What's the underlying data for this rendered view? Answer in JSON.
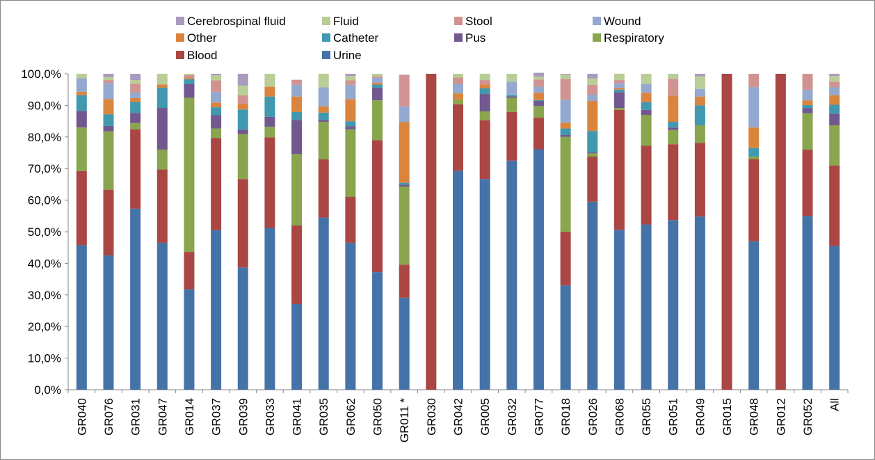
{
  "chart_data": {
    "type": "bar",
    "stacked": true,
    "percent_stacked": true,
    "categories": [
      "GR040",
      "GR076",
      "GR031",
      "GR047",
      "GR014",
      "GR037",
      "GR039",
      "GR033",
      "GR041",
      "GR035",
      "GR062",
      "GR050",
      "GR011 *",
      "GR030",
      "GR042",
      "GR005",
      "GR032",
      "GR077",
      "GR018",
      "GR026",
      "GR068",
      "GR055",
      "GR051",
      "GR049",
      "GR015",
      "GR048",
      "GR012",
      "GR052",
      "All"
    ],
    "ylim": [
      0,
      100
    ],
    "yticks": [
      "0,0%",
      "10,0%",
      "20,0%",
      "30,0%",
      "40,0%",
      "50,0%",
      "60,0%",
      "70,0%",
      "80,0%",
      "90,0%",
      "100,0%"
    ],
    "grid": false,
    "legend_position": "top",
    "legend_order": [
      "Cerebrospinal fluid",
      "Fluid",
      "Stool",
      "Wound",
      "Other",
      "Catheter",
      "Pus",
      "Respiratory",
      "Blood",
      "Urine"
    ],
    "series": [
      {
        "name": "Urine",
        "color": "#4573A7",
        "values": [
          45.8,
          42.5,
          57.3,
          46.5,
          31.8,
          50.5,
          38.7,
          51.2,
          27.1,
          54.5,
          46.5,
          37.2,
          29.1,
          0,
          69.3,
          66.7,
          72.5,
          76.1,
          33.0,
          59.5,
          50.6,
          52.3,
          53.7,
          54.8,
          0,
          47.0,
          0,
          55.0,
          45.5
        ]
      },
      {
        "name": "Blood",
        "color": "#AA4643",
        "values": [
          23.4,
          20.8,
          25.1,
          23.2,
          11.8,
          29.2,
          28.0,
          28.7,
          24.9,
          18.4,
          14.6,
          41.8,
          10.5,
          100,
          21.0,
          18.6,
          15.4,
          10.0,
          17.0,
          14.3,
          38.0,
          24.9,
          24.0,
          23.3,
          100,
          26.0,
          100,
          21.0,
          25.5
        ]
      },
      {
        "name": "Respiratory",
        "color": "#89A54E",
        "values": [
          13.8,
          18.5,
          2.0,
          6.3,
          48.8,
          3.0,
          14.2,
          3.3,
          22.6,
          11.9,
          21.3,
          12.6,
          24.7,
          0,
          1.5,
          2.8,
          4.5,
          3.7,
          30.0,
          1.0,
          0.6,
          9.8,
          4.5,
          5.6,
          0,
          0.8,
          0,
          11.5,
          12.7
        ]
      },
      {
        "name": "Pus",
        "color": "#71588F",
        "values": [
          5.2,
          1.7,
          3.2,
          13.2,
          4.3,
          4.2,
          1.4,
          3.2,
          10.8,
          0.6,
          1.0,
          4.0,
          0.6,
          0,
          0,
          5.5,
          0.5,
          1.6,
          0.7,
          0.3,
          5.0,
          1.6,
          0.8,
          0,
          0,
          0,
          0,
          1.6,
          3.7
        ]
      },
      {
        "name": "Catheter",
        "color": "#4198AF",
        "values": [
          5.0,
          3.7,
          3.5,
          6.4,
          1.6,
          2.5,
          6.4,
          6.4,
          2.5,
          2.3,
          1.6,
          1.0,
          0.6,
          0,
          0,
          1.8,
          0.3,
          0.3,
          2.0,
          6.8,
          0.8,
          2.4,
          1.8,
          6.3,
          0,
          2.7,
          0,
          1.0,
          2.8
        ]
      },
      {
        "name": "Other",
        "color": "#DB843D",
        "values": [
          1.1,
          4.8,
          1.2,
          1.0,
          0.5,
          1.5,
          1.8,
          3.1,
          4.9,
          2.0,
          7.0,
          0.6,
          19.2,
          0,
          2.0,
          1.2,
          0,
          2.3,
          1.8,
          9.5,
          0.5,
          3.0,
          8.3,
          2.8,
          0,
          6.5,
          0,
          1.5,
          3.0
        ]
      },
      {
        "name": "Wound",
        "color": "#93A9CF",
        "values": [
          4.3,
          5.0,
          1.8,
          0,
          0,
          3.4,
          0,
          0,
          3.7,
          6.0,
          4.5,
          1.5,
          5.0,
          0,
          3.0,
          0,
          4.3,
          1.9,
          7.3,
          2.0,
          1.5,
          2.7,
          0,
          2.4,
          0,
          12.8,
          0,
          3.3,
          2.5
        ]
      },
      {
        "name": "Stool",
        "color": "#D19392",
        "values": [
          0,
          1.0,
          2.7,
          0,
          0.8,
          3.6,
          2.7,
          0,
          1.6,
          0,
          1.4,
          0.5,
          10.0,
          0,
          2.0,
          1.4,
          0,
          2.3,
          6.6,
          3.1,
          1.0,
          0,
          5.3,
          0,
          0,
          4.2,
          0,
          5.1,
          1.8
        ]
      },
      {
        "name": "Fluid",
        "color": "#B9CD96",
        "values": [
          1.4,
          1.0,
          1.2,
          3.4,
          0.4,
          1.6,
          3.0,
          4.1,
          0,
          4.3,
          1.4,
          0.8,
          0,
          0,
          1.2,
          2.0,
          2.5,
          0.9,
          1.3,
          2.0,
          2.0,
          3.3,
          1.6,
          4.0,
          0,
          0,
          0,
          0,
          1.8
        ]
      },
      {
        "name": "Cerebrospinal fluid",
        "color": "#A99BBD",
        "values": [
          0,
          1.0,
          2.0,
          0,
          0,
          0.5,
          3.8,
          0,
          0,
          0,
          0.7,
          0,
          0,
          0,
          0,
          0,
          0,
          1.2,
          0.3,
          1.5,
          0,
          0,
          0,
          0.8,
          0,
          0,
          0,
          0,
          0.7
        ]
      }
    ]
  }
}
